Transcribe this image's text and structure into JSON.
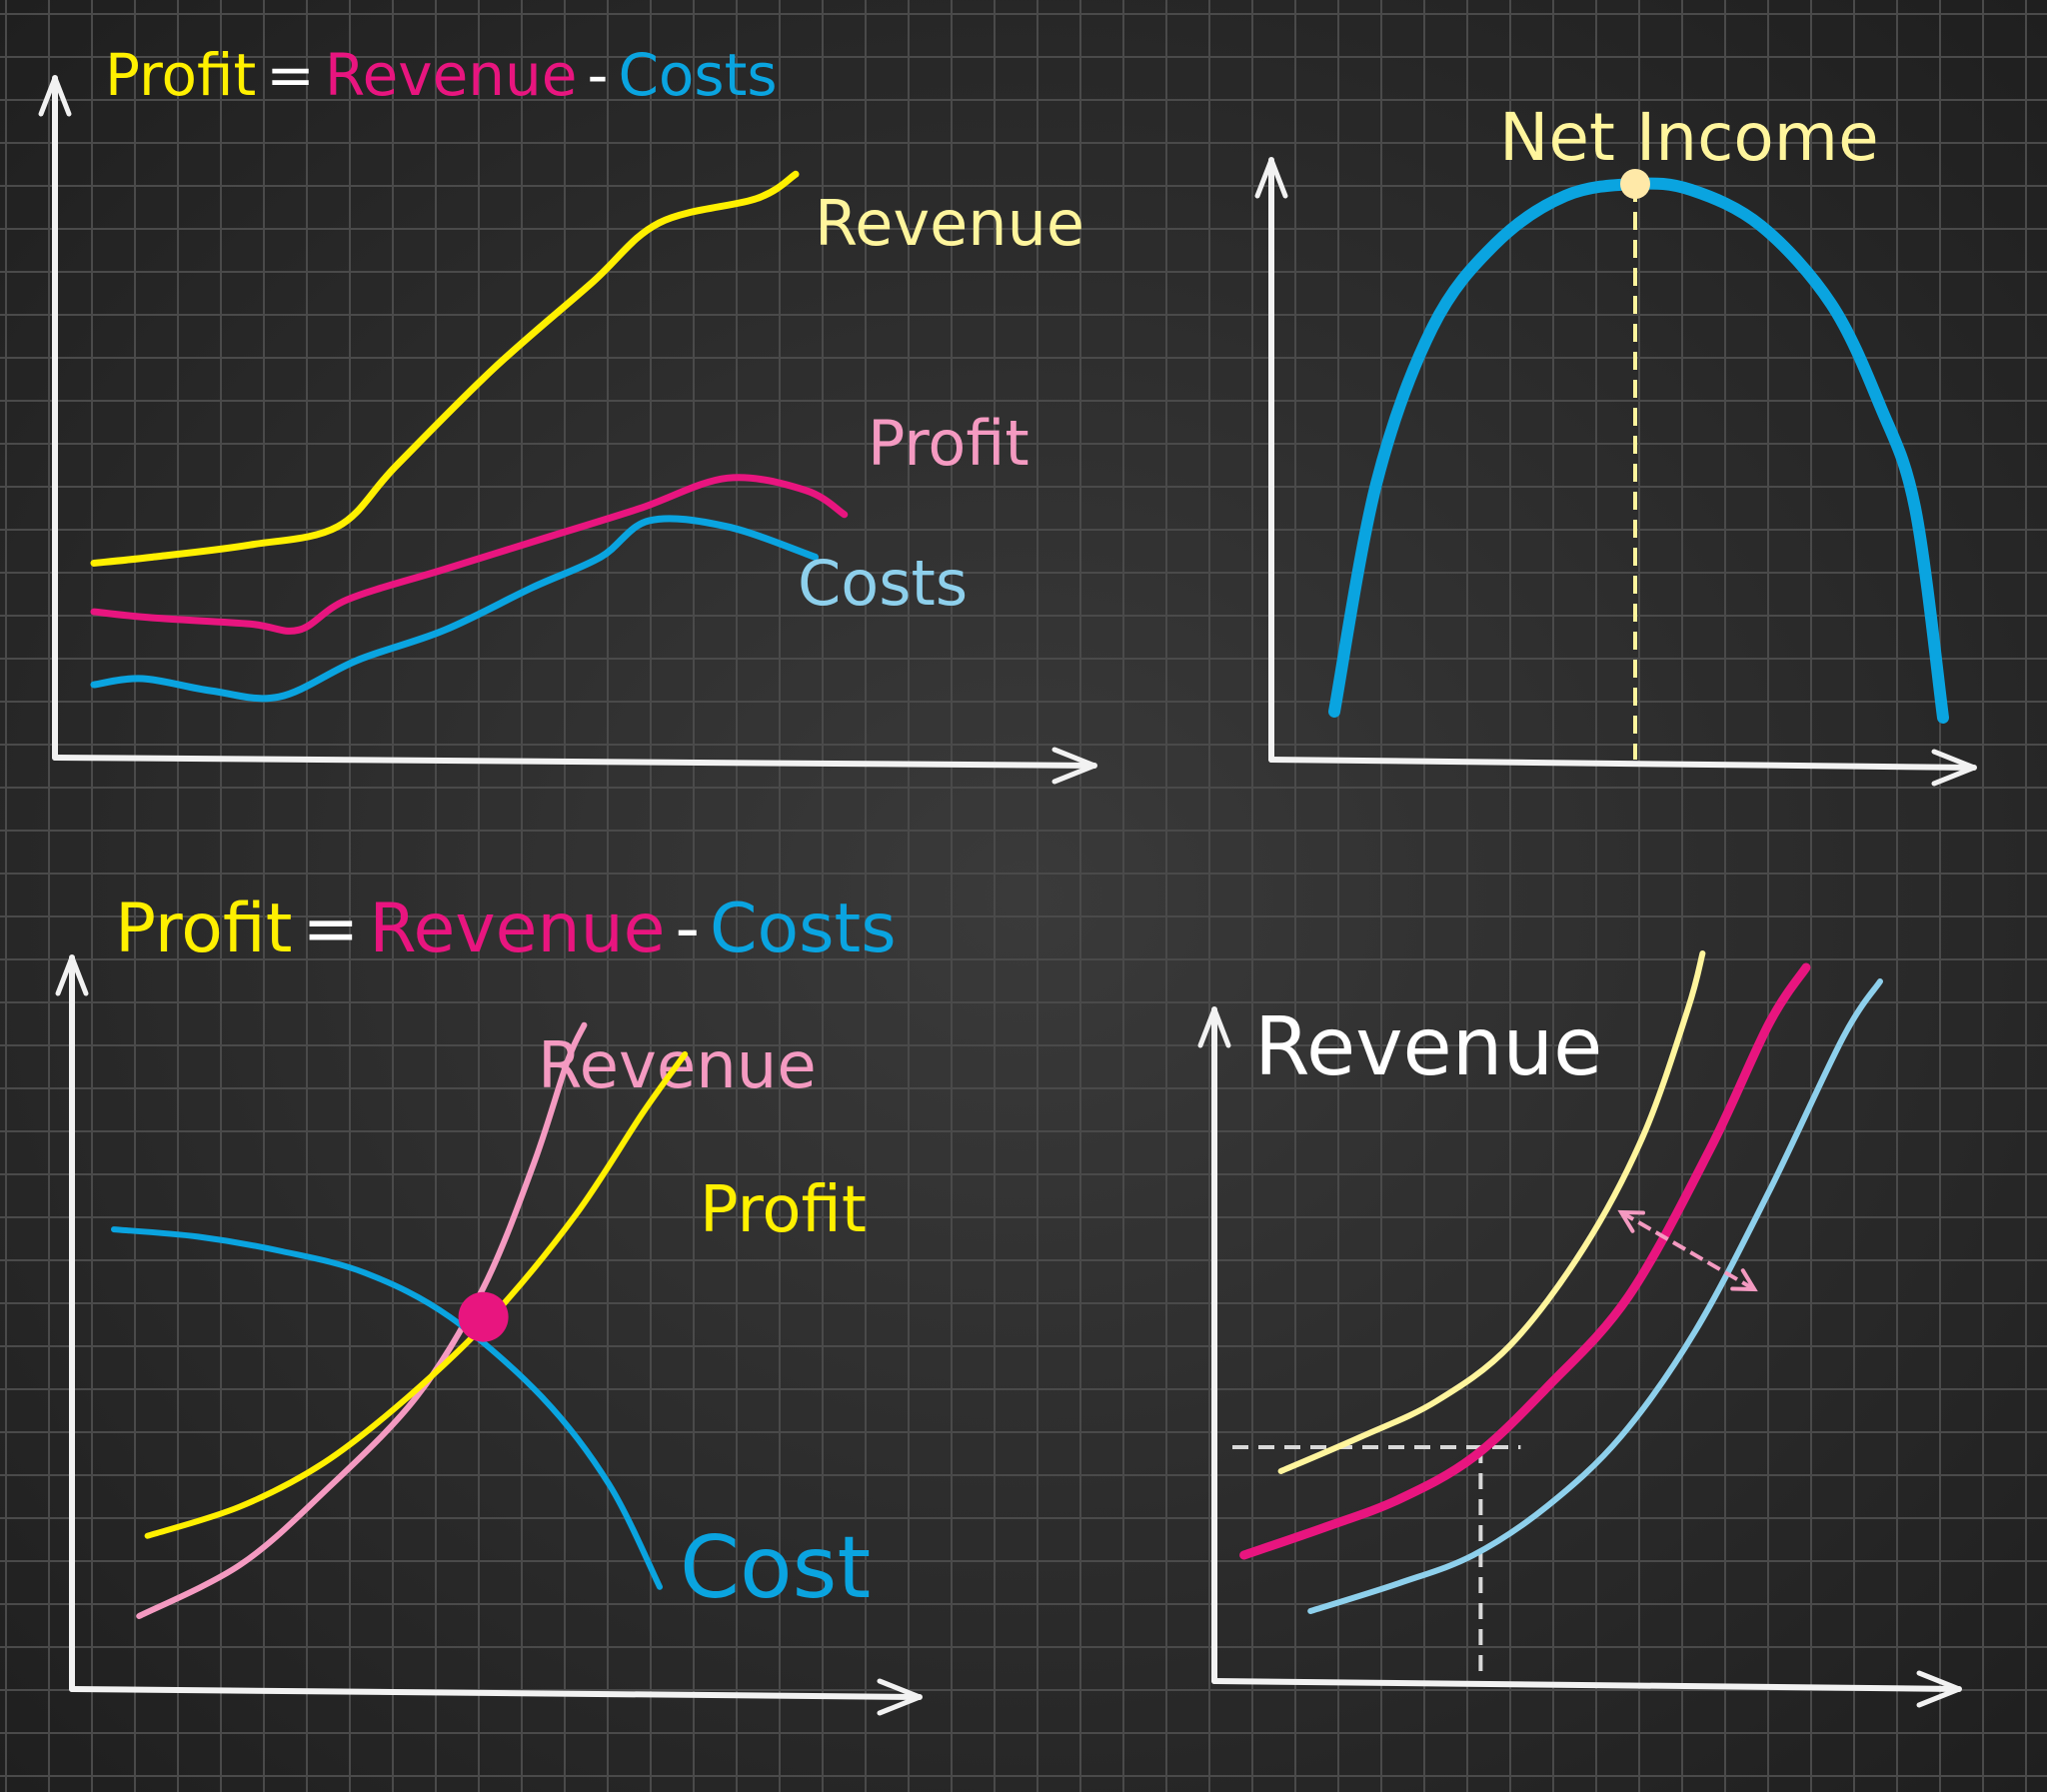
{
  "colors": {
    "background": "#2b2b2b",
    "grid": "#4a4a4a",
    "axis": "#f2f2f2",
    "yellow": "#fff000",
    "magenta": "#e8157f",
    "cyan": "#0aa4e0",
    "pale_yellow": "#fff59d",
    "pale_pink": "#f49ac1",
    "light_blue": "#8ed0ec",
    "marker_pink": "#e8157f"
  },
  "chart_data": [
    {
      "id": "top-left",
      "type": "line",
      "equation": [
        {
          "text": "Profit",
          "color": "#fff000"
        },
        {
          "text": "=",
          "color": "#ffffff"
        },
        {
          "text": "Revenue",
          "color": "#e8157f"
        },
        {
          "text": "-",
          "color": "#ffffff"
        },
        {
          "text": "Costs",
          "color": "#0aa4e0"
        }
      ],
      "xlim": [
        0,
        10
      ],
      "ylim": [
        0,
        10
      ],
      "series": [
        {
          "name": "Revenue",
          "color": "#fff000",
          "label_color": "#fff59d",
          "x": [
            0.4,
            1.0,
            2.0,
            2.9,
            3.5,
            4.5,
            5.5,
            6.2,
            7.2,
            7.6
          ],
          "y": [
            3.2,
            3.3,
            3.5,
            3.8,
            4.8,
            6.4,
            7.8,
            8.8,
            9.2,
            9.6
          ]
        },
        {
          "name": "Profit",
          "color": "#e8157f",
          "label_color": "#f49ac1",
          "x": [
            0.4,
            1.0,
            2.0,
            2.5,
            3.0,
            4.0,
            5.0,
            6.0,
            6.9,
            7.7,
            8.1
          ],
          "y": [
            2.4,
            2.3,
            2.2,
            2.1,
            2.6,
            3.1,
            3.6,
            4.1,
            4.6,
            4.4,
            4.0
          ]
        },
        {
          "name": "Costs",
          "color": "#0aa4e0",
          "label_color": "#8ed0ec",
          "x": [
            0.4,
            0.9,
            1.6,
            2.3,
            3.1,
            4.0,
            4.9,
            5.6,
            6.1,
            6.9,
            7.8
          ],
          "y": [
            1.2,
            1.3,
            1.1,
            1.0,
            1.6,
            2.1,
            2.8,
            3.3,
            3.9,
            3.8,
            3.3
          ]
        }
      ]
    },
    {
      "id": "top-right",
      "type": "line",
      "title": "Net Income",
      "xlim": [
        0,
        10
      ],
      "ylim": [
        0,
        10
      ],
      "series": [
        {
          "name": "",
          "color": "#0aa4e0",
          "x": [
            0.9,
            1.5,
            2.3,
            3.2,
            4.2,
            5.2,
            6.0,
            7.0,
            8.0,
            8.7,
            9.2,
            9.6
          ],
          "y": [
            0.8,
            4.6,
            7.2,
            8.6,
            9.4,
            9.6,
            9.5,
            8.9,
            7.6,
            5.9,
            4.2,
            0.7
          ]
        }
      ],
      "peak": {
        "x": 5.2,
        "y": 9.6
      }
    },
    {
      "id": "bottom-left",
      "type": "line",
      "equation": [
        {
          "text": "Profit",
          "color": "#fff000"
        },
        {
          "text": "=",
          "color": "#ffffff"
        },
        {
          "text": "Revenue",
          "color": "#e8157f"
        },
        {
          "text": "-",
          "color": "#ffffff"
        },
        {
          "text": "Costs",
          "color": "#0aa4e0"
        }
      ],
      "xlim": [
        0,
        10
      ],
      "ylim": [
        0,
        10
      ],
      "series": [
        {
          "name": "Revenue",
          "color": "#f49ac1",
          "label_color": "#f49ac1",
          "x": [
            0.8,
            2.0,
            3.0,
            4.1,
            4.9,
            5.5,
            5.9,
            6.1
          ],
          "y": [
            1.0,
            1.7,
            2.7,
            4.0,
            5.5,
            7.2,
            8.6,
            9.1
          ]
        },
        {
          "name": "Profit",
          "color": "#fff000",
          "label_color": "#fff000",
          "x": [
            0.9,
            2.0,
            3.0,
            4.0,
            5.0,
            6.0,
            6.8,
            7.3
          ],
          "y": [
            2.1,
            2.5,
            3.1,
            4.0,
            5.1,
            6.5,
            7.9,
            8.7
          ]
        },
        {
          "name": "Cost",
          "color": "#0aa4e0",
          "label_color": "#0aa4e0",
          "x": [
            0.5,
            1.5,
            2.5,
            3.5,
            4.5,
            5.6,
            6.4,
            7.0
          ],
          "y": [
            6.3,
            6.2,
            6.0,
            5.7,
            5.1,
            4.0,
            2.8,
            1.4
          ]
        }
      ],
      "intersection": {
        "x": 4.9,
        "y": 5.1
      }
    },
    {
      "id": "bottom-right",
      "type": "line",
      "title": "Revenue",
      "xlim": [
        0,
        10
      ],
      "ylim": [
        0,
        10
      ],
      "series": [
        {
          "name": "",
          "color": "#fff59d",
          "x": [
            0.9,
            2.0,
            3.0,
            4.0,
            5.0,
            5.8,
            6.4,
            6.6
          ],
          "y": [
            3.0,
            3.5,
            4.0,
            4.8,
            6.2,
            7.8,
            9.6,
            10.4
          ]
        },
        {
          "name": "",
          "color": "#e8157f",
          "x": [
            0.4,
            1.5,
            2.5,
            3.5,
            4.5,
            5.6,
            6.7,
            7.5,
            8.0
          ],
          "y": [
            1.8,
            2.2,
            2.6,
            3.2,
            4.2,
            5.5,
            7.6,
            9.4,
            10.2
          ]
        },
        {
          "name": "",
          "color": "#8ed0ec",
          "x": [
            1.3,
            2.5,
            3.5,
            4.5,
            5.5,
            6.5,
            7.5,
            8.5,
            9.0
          ],
          "y": [
            1.0,
            1.4,
            1.8,
            2.5,
            3.5,
            5.0,
            7.0,
            9.2,
            10.0
          ]
        }
      ],
      "reference": {
        "x": 3.6,
        "y": 3.2
      },
      "double_arrow": {
        "from": {
          "x": 5.5,
          "y": 6.7
        },
        "to": {
          "x": 7.3,
          "y": 5.6
        }
      }
    }
  ]
}
